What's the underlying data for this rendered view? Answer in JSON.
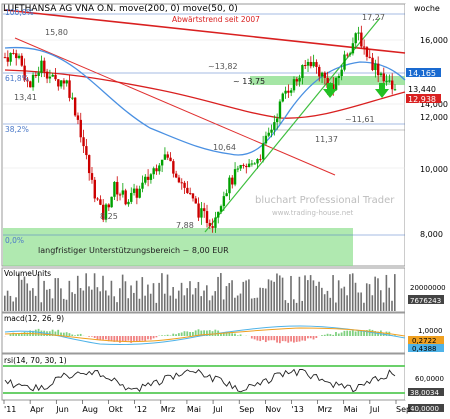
{
  "header": {
    "title": "LUFTHANSA AG VNA O.N. move(200, 0) move(50, 0)",
    "period": "woche"
  },
  "watermark": {
    "brand": "bluchart Professional Trader",
    "url": "www.trading-house.net"
  },
  "colors": {
    "green_zone": "#8ee08e",
    "ma200": "#d92020",
    "ma50": "#4a90e2",
    "candle_up": "#00a000",
    "candle_down": "#cc0000",
    "downtrend": "#e03030",
    "uptrend": "#3fbf3f",
    "fib": "#4a78c8",
    "price_badge": "#1a6ad0",
    "ma200_badge": "#d92020"
  },
  "annotations": {
    "downtrend_label": "Abwärtstrend seit 2007",
    "support_label": "langfristiger Unterstützungsbereich ~ 8,00 EUR",
    "fib_100": "100,0%",
    "fib_618": "61,8%",
    "fib_382": "38,2%",
    "fib_0": "0,0%",
    "p1": "15,80",
    "p2": "13,41",
    "p3": "~13,82",
    "p4": "~ 13,75",
    "p5": "17,27",
    "p6": "~11,61",
    "p7": "11,37",
    "p8": "10,64",
    "p9": "8,25",
    "p10": "7,88"
  },
  "main_axis": {
    "labels": [
      "16,000",
      "14,000",
      "12,000",
      "10,000",
      "8,000"
    ]
  },
  "badges": {
    "last_price": "14,165",
    "price_2": "13,440",
    "ma200": "12,938"
  },
  "volume": {
    "label": "VolumeUnits",
    "axis": "20000000",
    "value": "7676243"
  },
  "macd": {
    "label": "macd(12, 26, 9)",
    "axis_top": "1,0000",
    "value": "0,2722",
    "value2": "0,4388"
  },
  "rsi": {
    "label": "rsi(14, 70, 30, 1)",
    "axis": "60,0000",
    "value": "38,0034",
    "value2": "40,0000"
  },
  "x_axis": {
    "labels": [
      "'11",
      "Apr",
      "Jun",
      "Aug",
      "Okt",
      "'12",
      "Mrz",
      "Mai",
      "Jul",
      "Sep",
      "Nov",
      "'13",
      "Mrz",
      "Mai",
      "Jul",
      "Sep"
    ]
  },
  "chart_data": {
    "type": "candlestick",
    "title": "LUFTHANSA AG VNA O.N.",
    "period": "weekly",
    "y_axis_range": [
      7.5,
      17.8
    ],
    "series_price_approx": [
      {
        "date": "2011-01",
        "close": 15.6
      },
      {
        "date": "2011-02",
        "close": 15.8
      },
      {
        "date": "2011-03",
        "close": 14.2
      },
      {
        "date": "2011-04",
        "close": 15.3
      },
      {
        "date": "2011-05",
        "close": 14.5
      },
      {
        "date": "2011-06",
        "close": 14.6
      },
      {
        "date": "2011-07",
        "close": 12.8
      },
      {
        "date": "2011-08",
        "close": 10.2
      },
      {
        "date": "2011-09",
        "close": 8.4
      },
      {
        "date": "2011-10",
        "close": 9.8
      },
      {
        "date": "2011-11",
        "close": 9.2
      },
      {
        "date": "2011-12",
        "close": 9.6
      },
      {
        "date": "2012-01",
        "close": 10.4
      },
      {
        "date": "2012-02",
        "close": 11.3
      },
      {
        "date": "2012-03",
        "close": 10.5
      },
      {
        "date": "2012-04",
        "close": 9.5
      },
      {
        "date": "2012-05",
        "close": 8.6
      },
      {
        "date": "2012-06",
        "close": 8.2
      },
      {
        "date": "2012-07",
        "close": 9.6
      },
      {
        "date": "2012-08",
        "close": 10.4
      },
      {
        "date": "2012-09",
        "close": 10.7
      },
      {
        "date": "2012-10",
        "close": 11.3
      },
      {
        "date": "2012-11",
        "close": 12.6
      },
      {
        "date": "2012-12",
        "close": 14.1
      },
      {
        "date": "2013-01",
        "close": 14.6
      },
      {
        "date": "2013-02",
        "close": 15.5
      },
      {
        "date": "2013-03",
        "close": 14.8
      },
      {
        "date": "2013-04",
        "close": 14.1
      },
      {
        "date": "2013-05",
        "close": 15.8
      },
      {
        "date": "2013-06",
        "close": 16.6
      },
      {
        "date": "2013-07",
        "close": 15.4
      },
      {
        "date": "2013-08",
        "close": 14.8
      },
      {
        "date": "2013-09",
        "close": 14.0
      }
    ]
  }
}
